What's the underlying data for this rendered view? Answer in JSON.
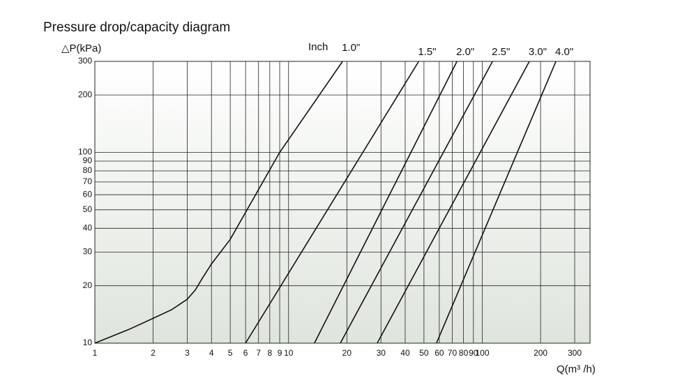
{
  "chart_data": {
    "type": "line",
    "title": "Pressure drop/capacity diagram",
    "y_label": "△P(kPa)",
    "x_label": "Q(m³ /h)",
    "annotation": "Inch",
    "log_x": true,
    "log_y": true,
    "grid": true,
    "color": "#111111",
    "xlim": [
      1,
      360
    ],
    "ylim": [
      10,
      300
    ],
    "xticks": [
      1,
      2,
      3,
      4,
      5,
      6,
      7,
      8,
      9,
      10,
      20,
      30,
      40,
      50,
      60,
      70,
      80,
      90,
      100,
      200,
      300
    ],
    "yticks": [
      10,
      20,
      30,
      40,
      50,
      60,
      70,
      80,
      90,
      100,
      200,
      300
    ],
    "series": [
      {
        "name": "1.0\"",
        "x": [
          1,
          1.5,
          2,
          2.5,
          3,
          3.3,
          3.6,
          4,
          5,
          9,
          19
        ],
        "values": [
          10,
          11.8,
          13.5,
          15,
          17,
          19,
          22,
          26,
          35,
          100,
          300
        ]
      },
      {
        "name": "1.5\"",
        "x": [
          6,
          47
        ],
        "values": [
          10,
          300
        ]
      },
      {
        "name": "2.0\"",
        "x": [
          13.6,
          74
        ],
        "values": [
          10,
          300
        ]
      },
      {
        "name": "2.5\"",
        "x": [
          18.5,
          113
        ],
        "values": [
          10,
          300
        ]
      },
      {
        "name": "3.0\"",
        "x": [
          28.7,
          175
        ],
        "values": [
          10,
          300
        ]
      },
      {
        "name": "4.0\"",
        "x": [
          58,
          240
        ],
        "values": [
          10,
          300
        ]
      }
    ]
  }
}
